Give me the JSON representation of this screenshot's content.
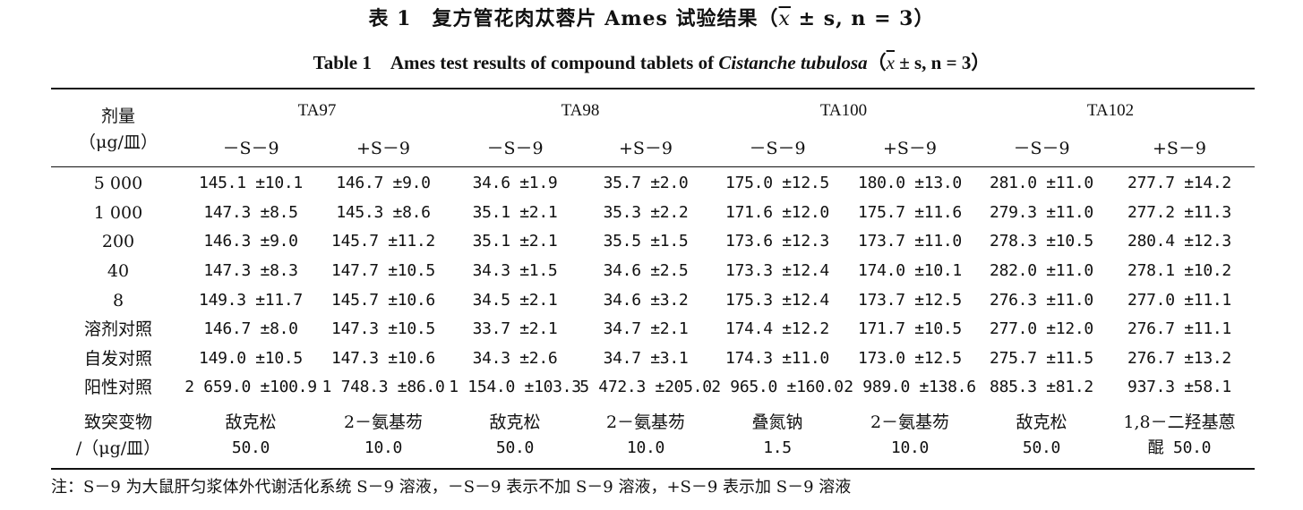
{
  "title_cn": "表 1　复方管花肉苁蓉片 Ames 试验结果（",
  "title_cn_xbar": "x",
  "title_cn_tail": " ± s, n = 3）",
  "title_en_pre": "Table 1　Ames test results of compound tablets of ",
  "title_en_species": "Cistanche tubulosa",
  "title_en_open": "（",
  "title_en_xbar": "x",
  "title_en_tail": " ± s, n = 3）",
  "header": {
    "dose_label": "剂量",
    "dose_unit": "（μg/皿）",
    "strains": [
      "TA97",
      "TA98",
      "TA100",
      "TA102"
    ],
    "sub": [
      "－S－9",
      "+S－9",
      "－S－9",
      "+S－9",
      "－S－9",
      "+S－9",
      "－S－9",
      "+S－9"
    ]
  },
  "rows": [
    {
      "label": "5 000",
      "values": [
        "145.1 ±10.1",
        "146.7 ±9.0",
        "34.6 ±1.9",
        "35.7 ±2.0",
        "175.0 ±12.5",
        "180.0 ±13.0",
        "281.0 ±11.0",
        "277.7 ±14.2"
      ]
    },
    {
      "label": "1 000",
      "values": [
        "147.3 ±8.5",
        "145.3 ±8.6",
        "35.1 ±2.1",
        "35.3 ±2.2",
        "171.6 ±12.0",
        "175.7 ±11.6",
        "279.3 ±11.0",
        "277.2 ±11.3"
      ]
    },
    {
      "label": "200",
      "values": [
        "146.3 ±9.0",
        "145.7 ±11.2",
        "35.1 ±2.1",
        "35.5 ±1.5",
        "173.6 ±12.3",
        "173.7 ±11.0",
        "278.3 ±10.5",
        "280.4 ±12.3"
      ]
    },
    {
      "label": "40",
      "values": [
        "147.3 ±8.3",
        "147.7 ±10.5",
        "34.3 ±1.5",
        "34.6 ±2.5",
        "173.3 ±12.4",
        "174.0 ±10.1",
        "282.0 ±11.0",
        "278.1 ±10.2"
      ]
    },
    {
      "label": "8",
      "values": [
        "149.3 ±11.7",
        "145.7 ±10.6",
        "34.5 ±2.1",
        "34.6 ±3.2",
        "175.3 ±12.4",
        "173.7 ±12.5",
        "276.3 ±11.0",
        "277.0 ±11.1"
      ]
    },
    {
      "label": "溶剂对照",
      "values": [
        "146.7 ±8.0",
        "147.3 ±10.5",
        "33.7 ±2.1",
        "34.7 ±2.1",
        "174.4 ±12.2",
        "171.7 ±10.5",
        "277.0 ±12.0",
        "276.7 ±11.1"
      ]
    },
    {
      "label": "自发对照",
      "values": [
        "149.0 ±10.5",
        "147.3 ±10.6",
        "34.3 ±2.6",
        "34.7 ±3.1",
        "174.3 ±11.0",
        "173.0 ±12.5",
        "275.7 ±11.5",
        "276.7 ±13.2"
      ]
    },
    {
      "label": "阳性对照",
      "values": [
        "2 659.0 ±100.9",
        "1 748.3 ±86.0",
        "1 154.0 ±103.3",
        "5 472.3 ±205.0",
        "2 965.0 ±160.0",
        "2 989.0 ±138.6",
        "885.3 ±81.2",
        "937.3 ±58.1"
      ]
    }
  ],
  "mutagen": {
    "label_line1": "致突变物",
    "label_line2": "/（μg/皿）",
    "names": [
      "敌克松",
      "2－氨基芴",
      "敌克松",
      "2－氨基芴",
      "叠氮钠",
      "2－氨基芴",
      "敌克松",
      "1,8－二羟基蒽"
    ],
    "doses": [
      "50.0",
      "10.0",
      "50.0",
      "10.0",
      "1.5",
      "10.0",
      "50.0",
      "醌 50.0"
    ]
  },
  "note": "注：S－9 为大鼠肝匀浆体外代谢活化系统 S－9 溶液，－S－9 表示不加 S－9 溶液，+S－9 表示加 S－9 溶液"
}
